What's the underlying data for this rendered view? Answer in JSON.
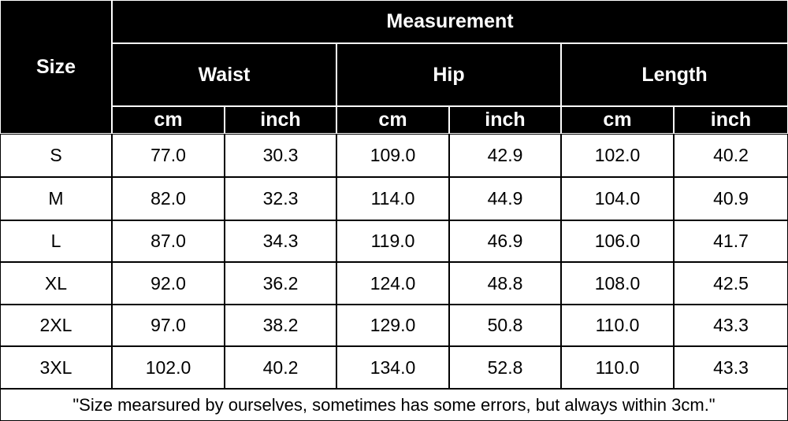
{
  "header": {
    "size": "Size",
    "measurement": "Measurement",
    "groups": [
      "Waist",
      "Hip",
      "Length"
    ],
    "units": [
      "cm",
      "inch",
      "cm",
      "inch",
      "cm",
      "inch"
    ]
  },
  "table": {
    "rows": [
      [
        "S",
        "77.0",
        "30.3",
        "109.0",
        "42.9",
        "102.0",
        "40.2"
      ],
      [
        "M",
        "82.0",
        "32.3",
        "114.0",
        "44.9",
        "104.0",
        "40.9"
      ],
      [
        "L",
        "87.0",
        "34.3",
        "119.0",
        "46.9",
        "106.0",
        "41.7"
      ],
      [
        "XL",
        "92.0",
        "36.2",
        "124.0",
        "48.8",
        "108.0",
        "42.5"
      ],
      [
        "2XL",
        "97.0",
        "38.2",
        "129.0",
        "50.8",
        "110.0",
        "43.3"
      ],
      [
        "3XL",
        "102.0",
        "40.2",
        "134.0",
        "52.8",
        "110.0",
        "43.3"
      ]
    ]
  },
  "footnote": "\"Size mearsured by ourselves, sometimes has some errors, but always within 3cm.\""
}
